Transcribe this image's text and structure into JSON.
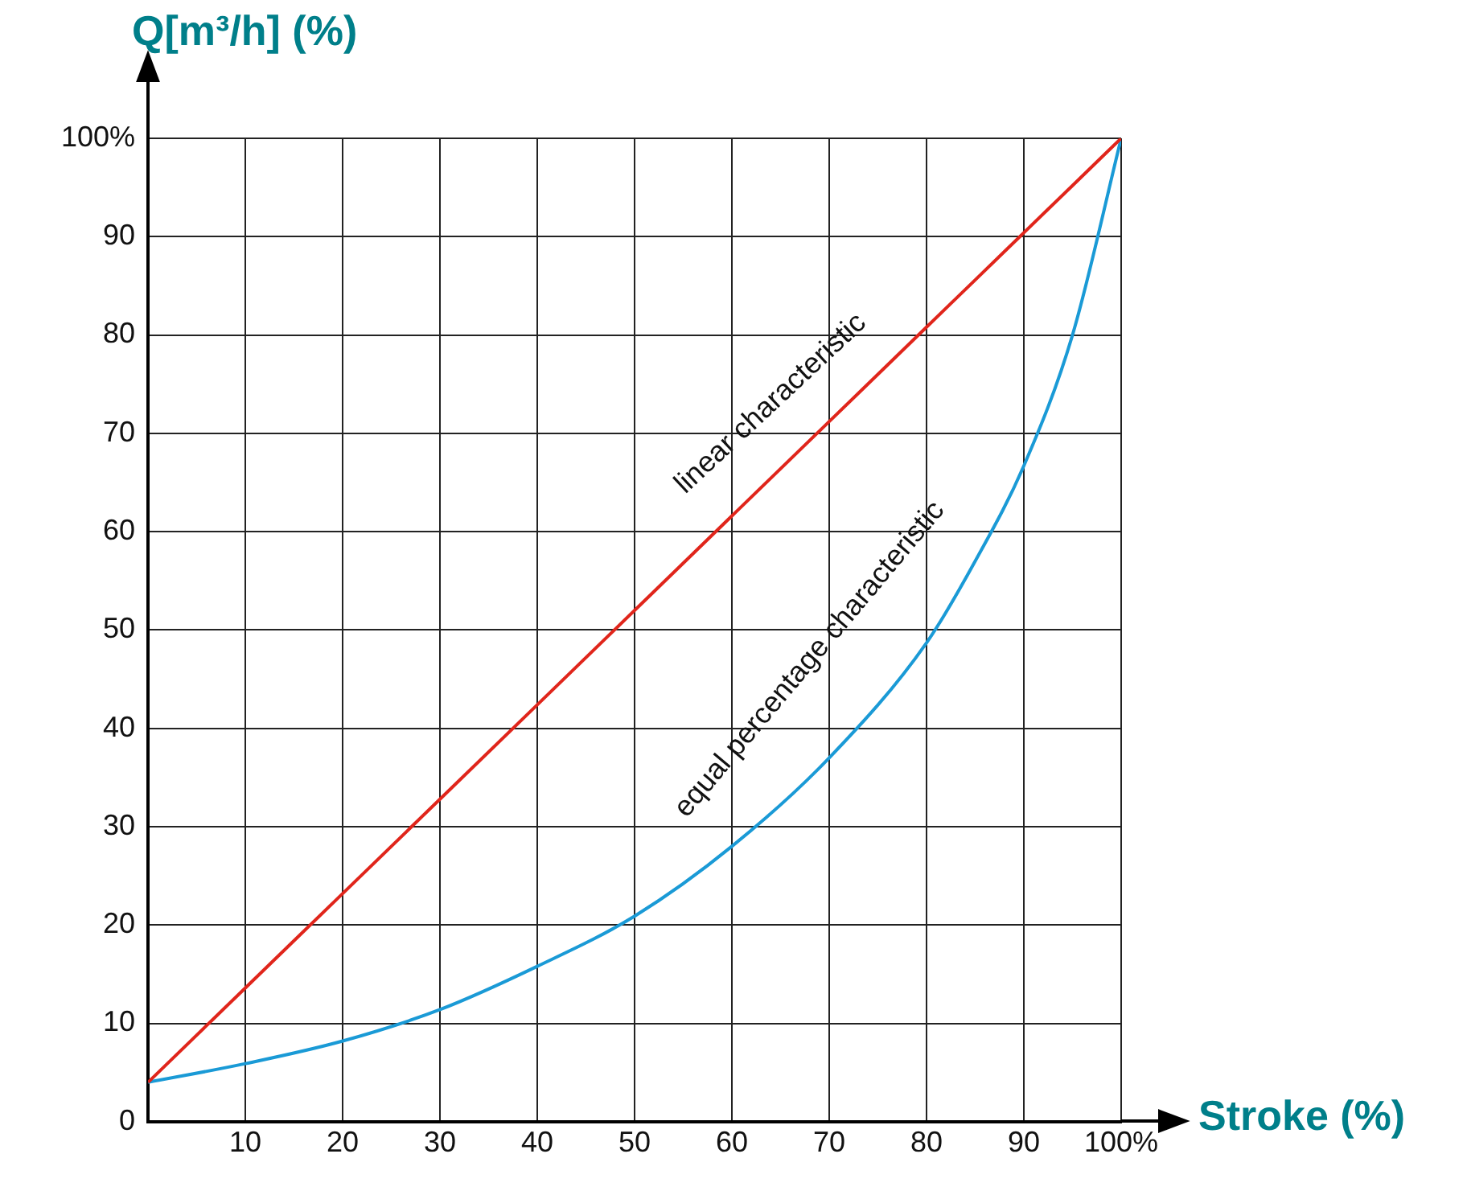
{
  "chart_data": {
    "type": "line",
    "xlabel": "Stroke (%)",
    "ylabel": "Q[m³/h] (%)",
    "x": [
      0,
      10,
      20,
      30,
      40,
      50,
      60,
      70,
      80,
      85,
      90,
      95,
      100
    ],
    "series": [
      {
        "color": "#e0251b",
        "values": [
          4,
          13.6,
          23.2,
          32.8,
          42.4,
          52,
          61.6,
          71.2,
          80.8,
          85.6,
          90.4,
          95.2,
          100
        ]
      },
      {
        "color": "#1a9ad6",
        "values": [
          4,
          5.9,
          8.2,
          11.4,
          15.8,
          20.9,
          28,
          37,
          48.7,
          57,
          66.7,
          80,
          100
        ]
      }
    ],
    "xlim": [
      0,
      100
    ],
    "ylim": [
      0,
      100
    ],
    "xticks": [
      {
        "value": 0,
        "label": null
      },
      10,
      20,
      30,
      40,
      50,
      60,
      70,
      80,
      90,
      {
        "value": 100,
        "label": "100%"
      }
    ],
    "yticks": [
      0,
      10,
      20,
      30,
      40,
      50,
      60,
      70,
      80,
      90,
      {
        "value": 100,
        "label": "100%"
      }
    ],
    "grid": true,
    "marker": "none",
    "line_style": "solid",
    "annotations": [
      "linear characteristic",
      "equal percentage characteristic"
    ]
  }
}
